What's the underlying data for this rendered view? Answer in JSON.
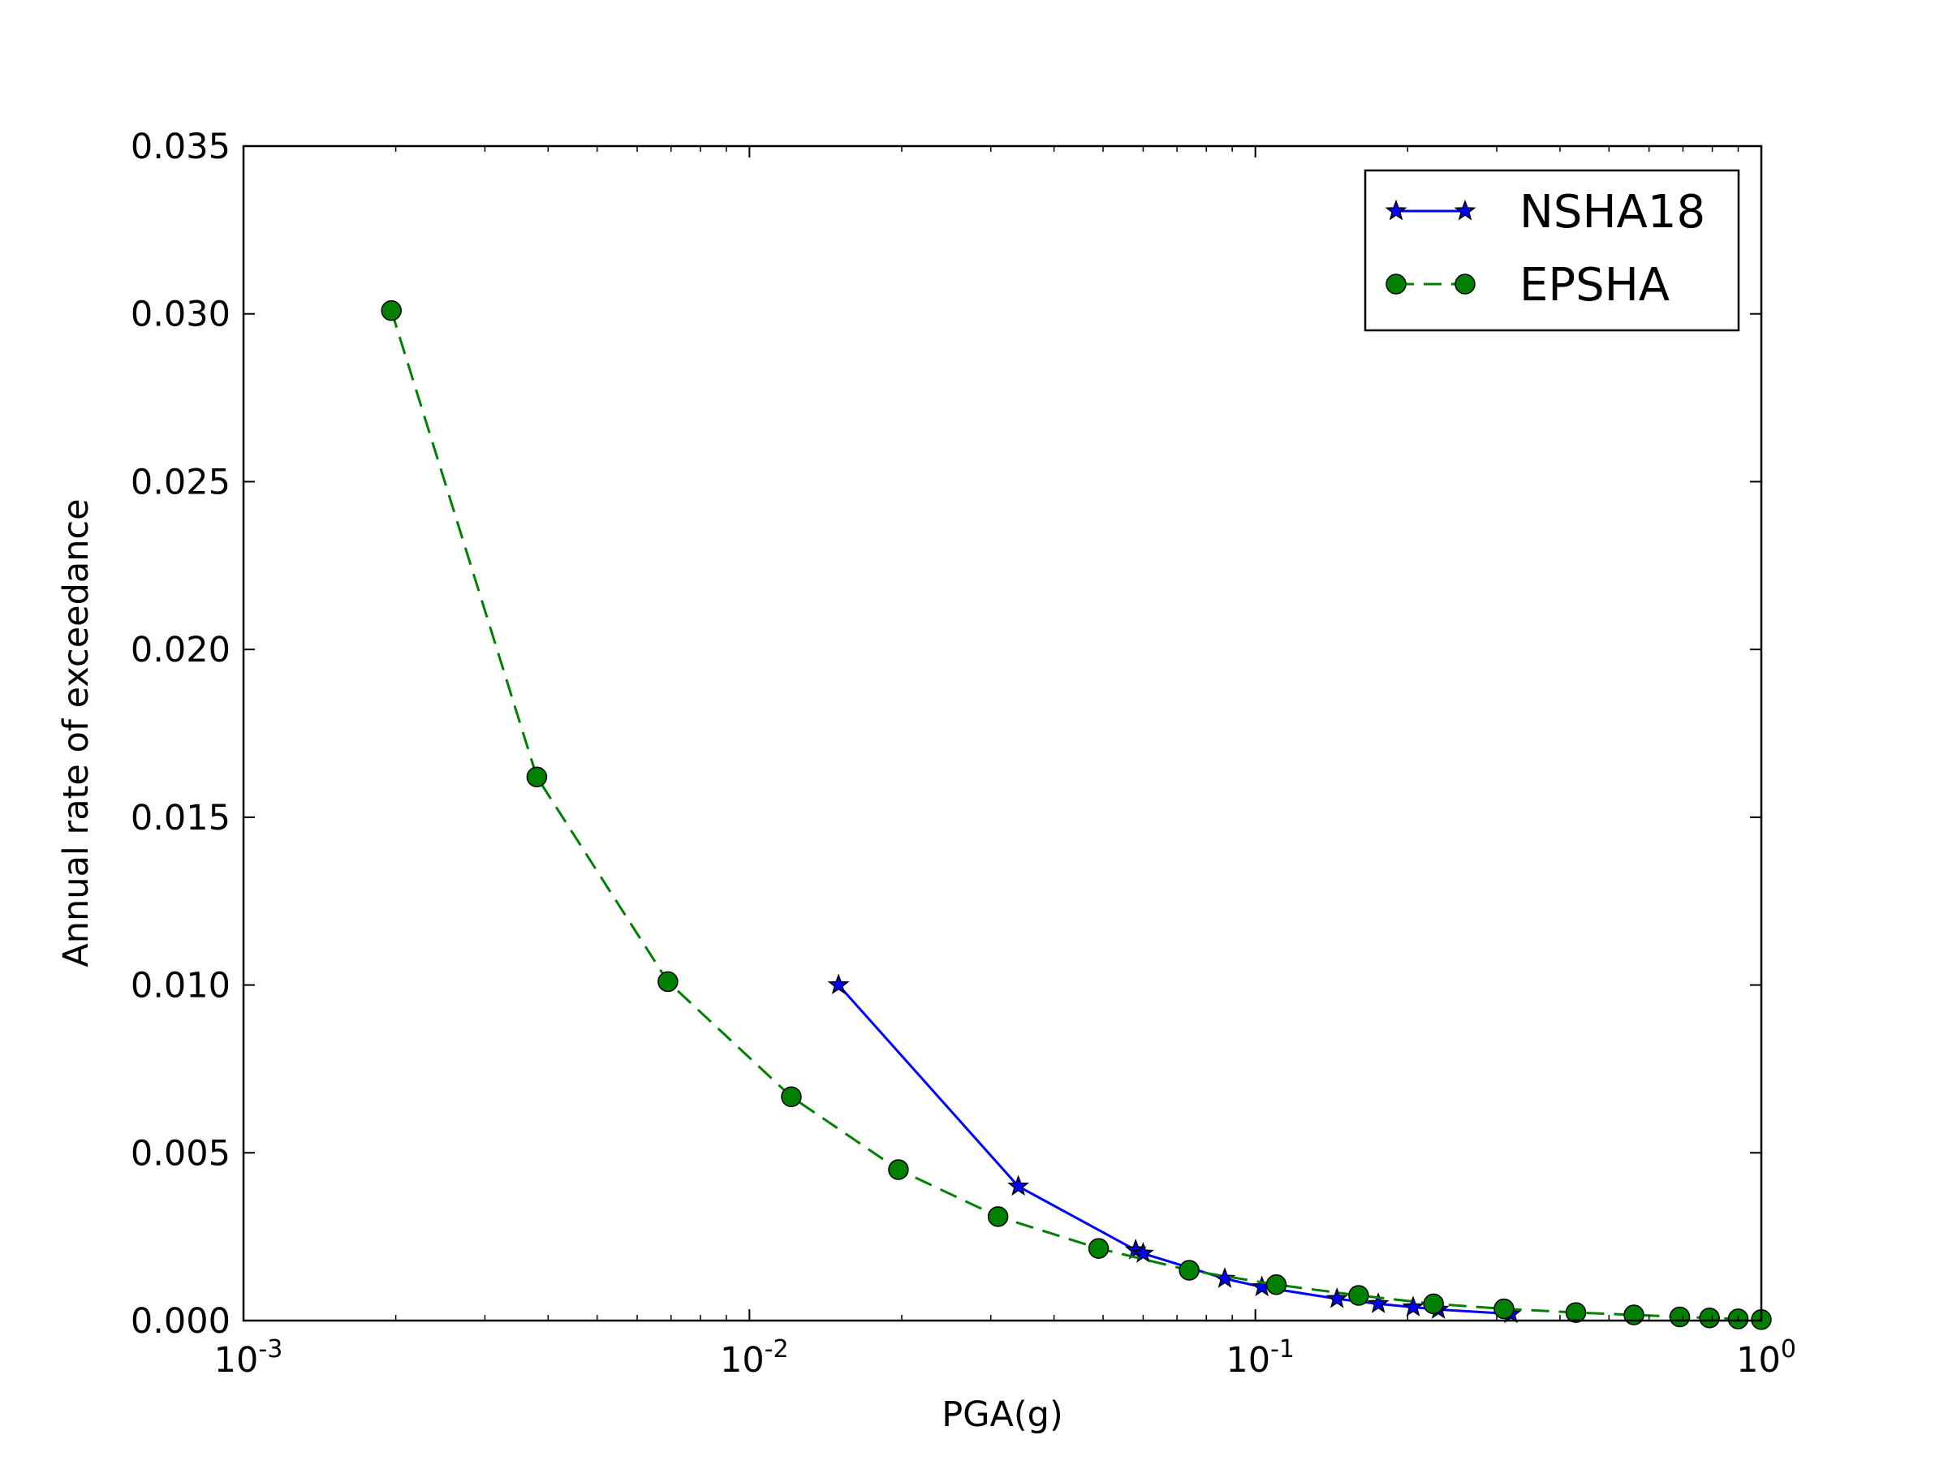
{
  "chart_data": {
    "type": "line",
    "title": "",
    "xlabel": "PGA(g)",
    "ylabel": "Annual rate of exceedance",
    "xscale": "log",
    "xlim": [
      0.001,
      1.0
    ],
    "ylim": [
      0.0,
      0.035
    ],
    "x_tick_labels": [
      {
        "value": 0.001,
        "base": "10",
        "exp": "-3"
      },
      {
        "value": 0.01,
        "base": "10",
        "exp": "-2"
      },
      {
        "value": 0.1,
        "base": "10",
        "exp": "-1"
      },
      {
        "value": 1.0,
        "base": "10",
        "exp": "0"
      }
    ],
    "y_tick_labels": [
      "0.000",
      "0.005",
      "0.010",
      "0.015",
      "0.020",
      "0.025",
      "0.030",
      "0.035"
    ],
    "y_tick_values": [
      0.0,
      0.005,
      0.01,
      0.015,
      0.02,
      0.025,
      0.03,
      0.035
    ],
    "grid": false,
    "legend_position": "top-right",
    "series": [
      {
        "name": "NSHA18",
        "color": "#0000ff",
        "line_style": "solid",
        "marker": "star",
        "x": [
          0.015,
          0.034,
          0.058,
          0.06,
          0.087,
          0.103,
          0.145,
          0.175,
          0.205,
          0.23,
          0.32
        ],
        "y": [
          0.01,
          0.004,
          0.0021,
          0.002,
          0.00125,
          0.001,
          0.00065,
          0.0005,
          0.0004,
          0.00033,
          0.0002
        ]
      },
      {
        "name": "EPSHA",
        "color": "#008000",
        "line_style": "dashed",
        "marker": "circle",
        "x": [
          0.00196,
          0.0038,
          0.0069,
          0.0121,
          0.0197,
          0.031,
          0.049,
          0.074,
          0.11,
          0.16,
          0.225,
          0.31,
          0.43,
          0.56,
          0.69,
          0.79,
          0.9,
          1.0
        ],
        "y": [
          0.0301,
          0.0162,
          0.0101,
          0.00667,
          0.0045,
          0.0031,
          0.00215,
          0.0015,
          0.00107,
          0.00075,
          0.0005,
          0.00035,
          0.00024,
          0.00017,
          0.00011,
          8e-05,
          5e-05,
          3e-05
        ]
      }
    ]
  }
}
